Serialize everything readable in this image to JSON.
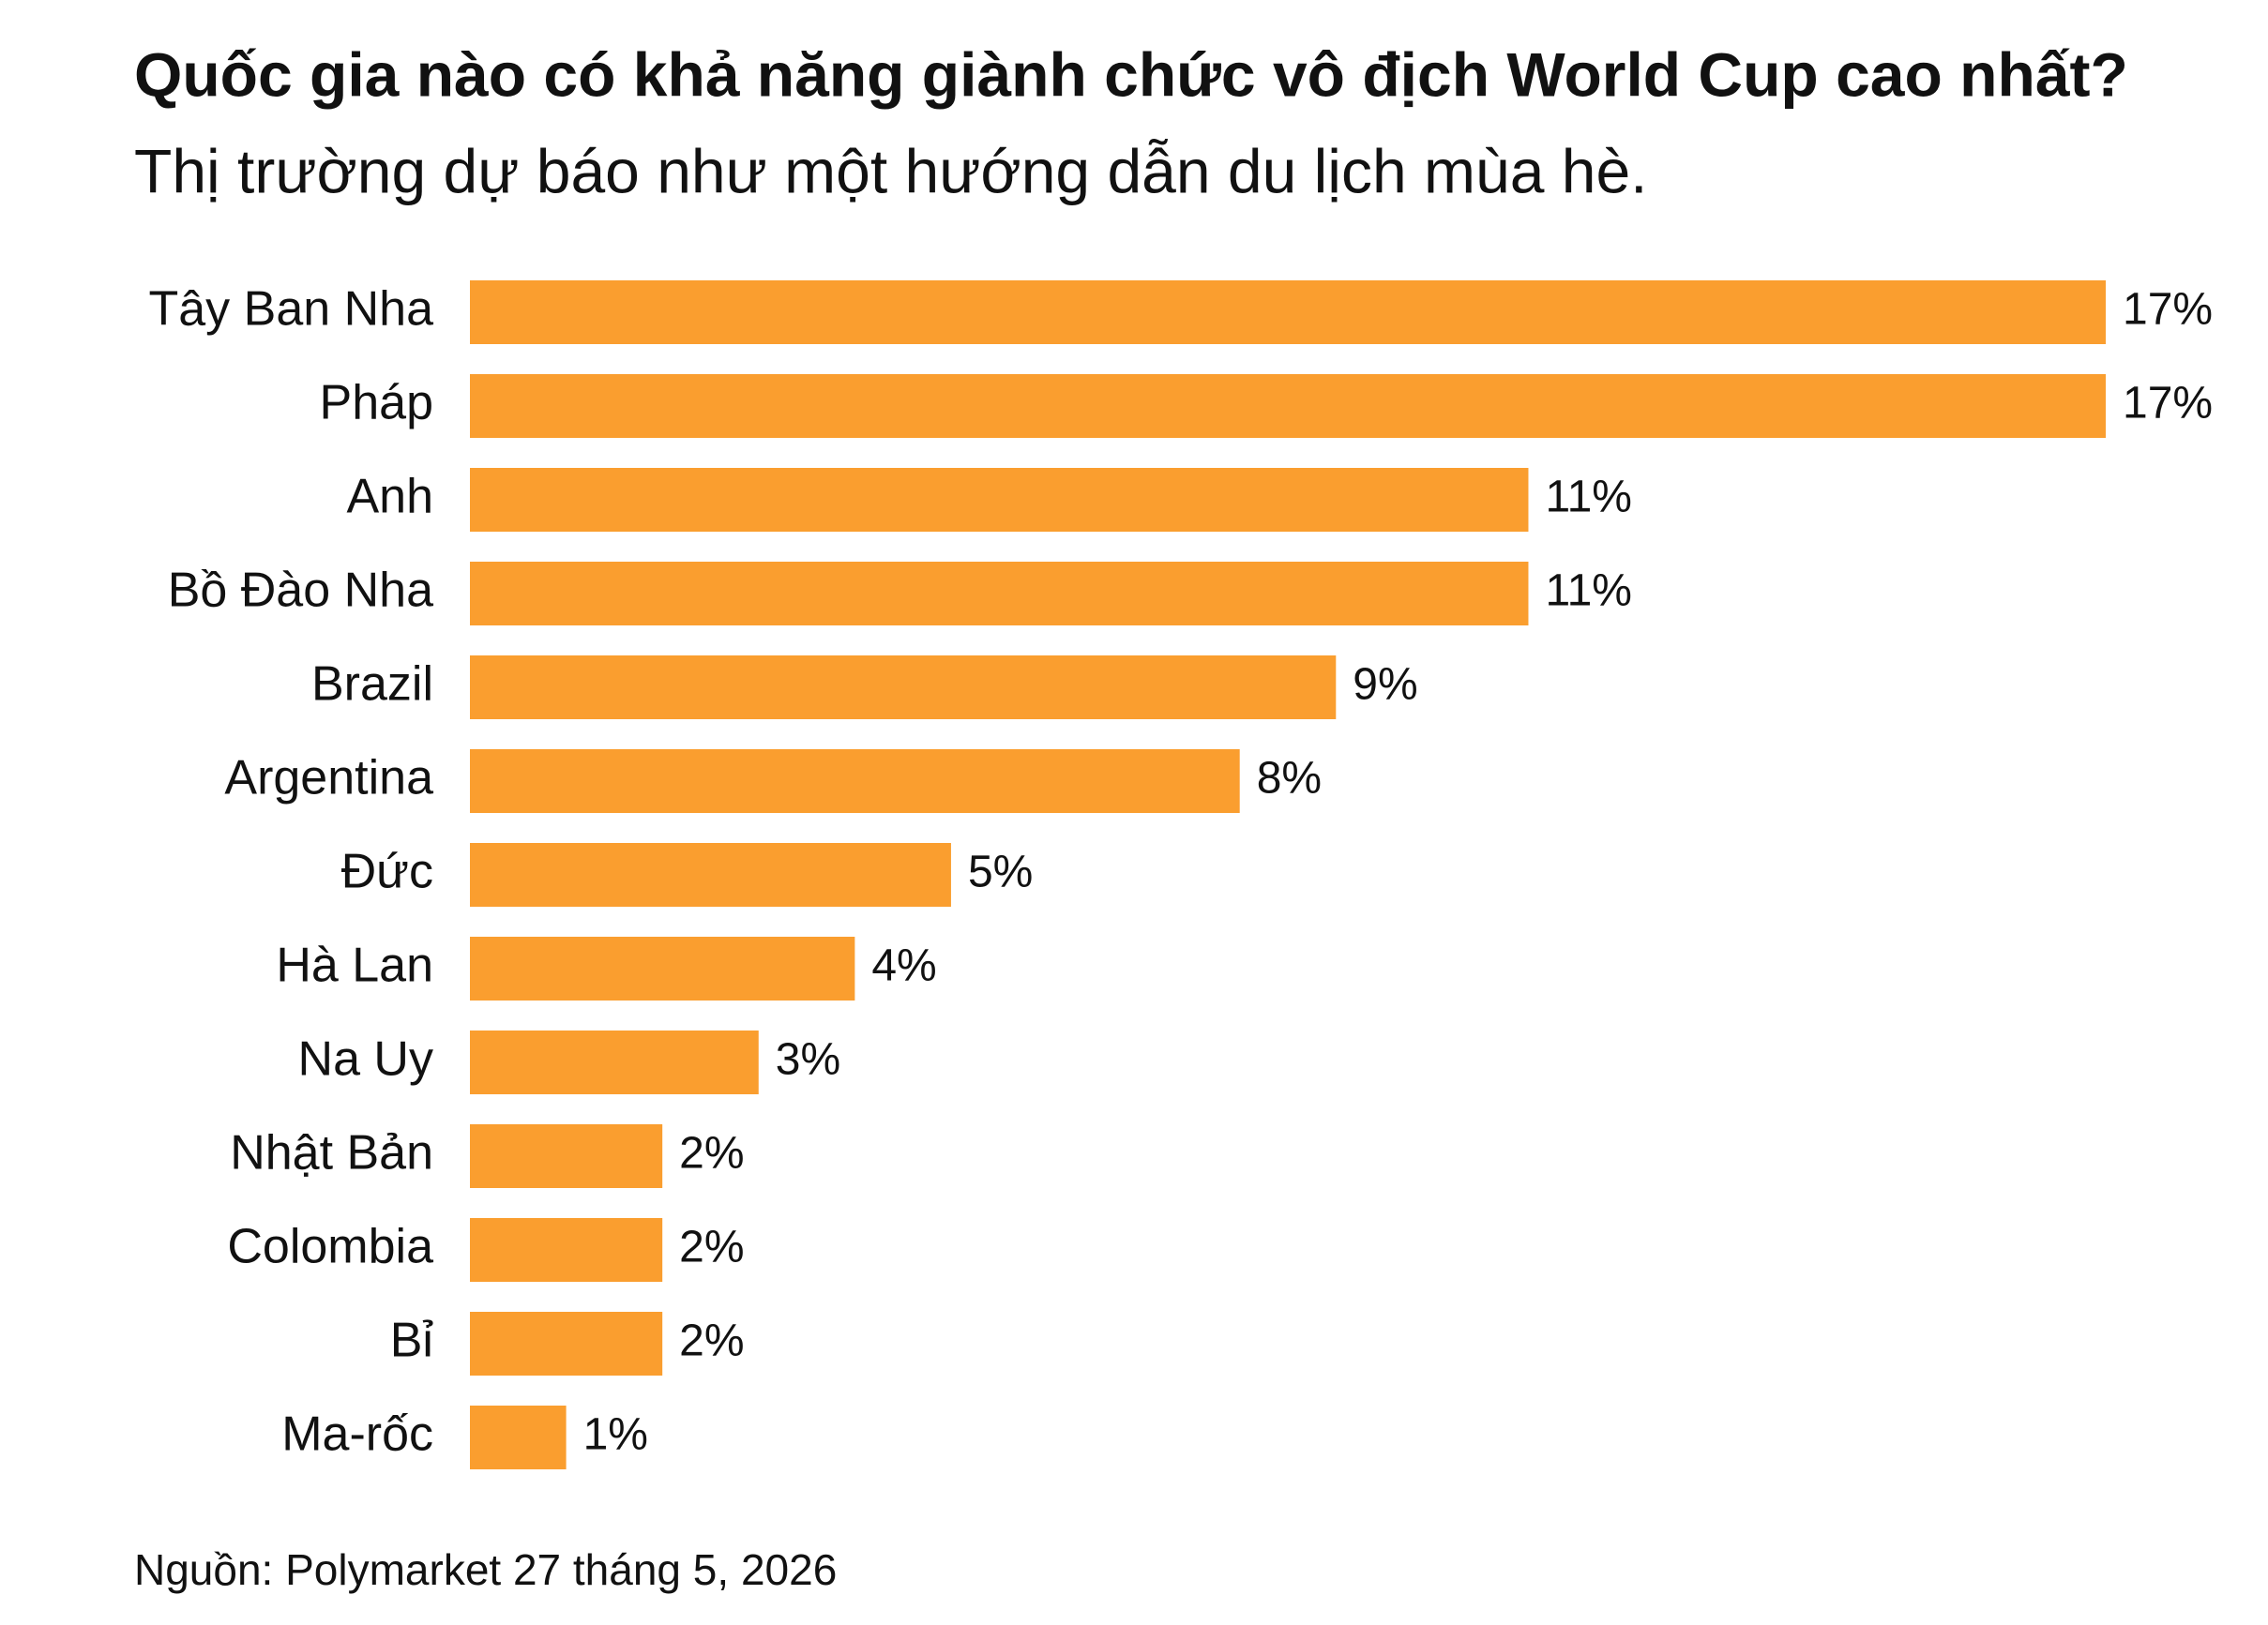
{
  "chart_data": {
    "type": "bar",
    "orientation": "horizontal",
    "title": "Quốc gia nào có khả năng giành chức vô địch World Cup cao nhất?",
    "subtitle": "Thị trường dự báo như một hướng dẫn du lịch mùa hè.",
    "source": "Nguồn: Polymarket 27 tháng 5, 2026",
    "categories": [
      "Tây Ban Nha",
      "Pháp",
      "Anh",
      "Bồ Đào Nha",
      "Brazil",
      "Argentina",
      "Đức",
      "Hà Lan",
      "Na Uy",
      "Nhật Bản",
      "Colombia",
      "Bỉ",
      "Ma-rốc"
    ],
    "values": [
      17,
      17,
      11,
      11,
      9,
      8,
      5,
      4,
      3,
      2,
      2,
      2,
      1
    ],
    "value_labels": [
      "17%",
      "17%",
      "11%",
      "11%",
      "9%",
      "8%",
      "5%",
      "4%",
      "3%",
      "2%",
      "2%",
      "2%",
      "1%"
    ],
    "color": "#fa9e2f"
  }
}
